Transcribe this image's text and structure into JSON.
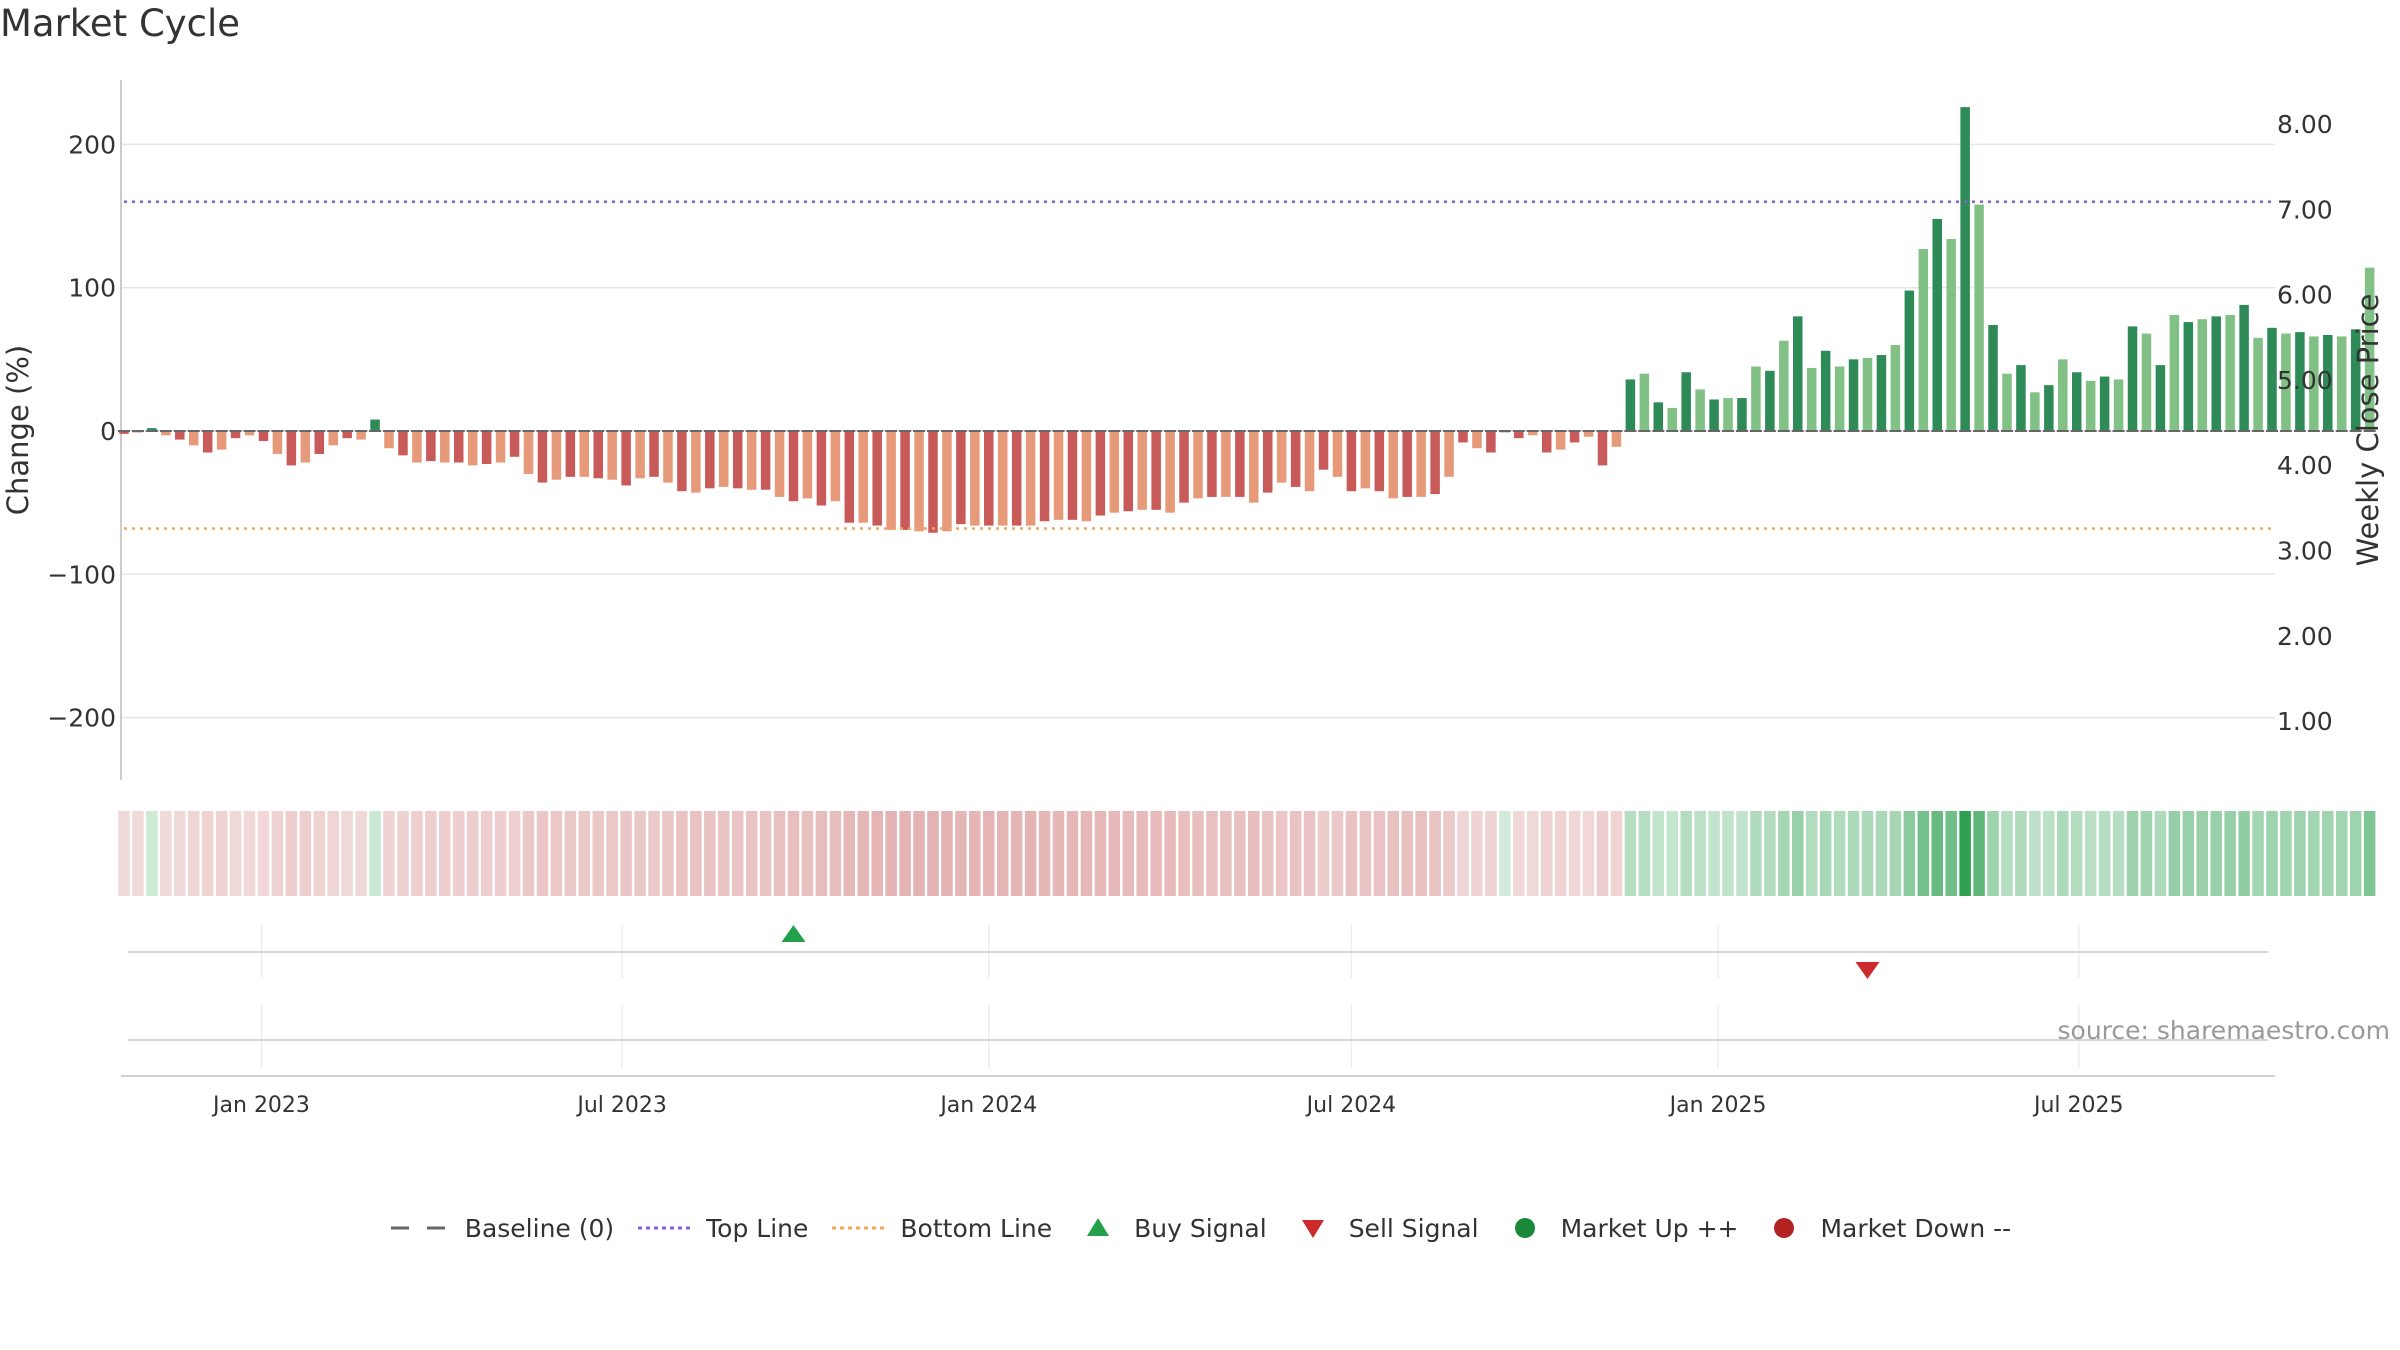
{
  "title": "Market Cycle",
  "source": "source: sharemaestro.com",
  "colors": {
    "up_strong": "#2e8b57",
    "up_light": "#82c185",
    "down_strong": "#c95a5a",
    "down_light": "#e69a7a",
    "top_line": "#8a5fd6",
    "bottom_line": "#f0a560",
    "baseline": "#666666",
    "buy": "#22a04b",
    "sell": "#cc2b2b",
    "market_up": "#1a8a3a",
    "market_down": "#b22222"
  },
  "legend": [
    {
      "label": "Baseline (0)",
      "icon": "dash-line"
    },
    {
      "label": "Top Line",
      "icon": "dotted-purple-line"
    },
    {
      "label": "Bottom Line",
      "icon": "dotted-orange-line"
    },
    {
      "label": "Buy Signal",
      "icon": "triangle-up"
    },
    {
      "label": "Sell Signal",
      "icon": "triangle-down"
    },
    {
      "label": "Market Up ++",
      "icon": "green-dot"
    },
    {
      "label": "Market Down --",
      "icon": "red-dot"
    }
  ],
  "chart_data": {
    "type": "bar",
    "ylabel_left": "Change (%)",
    "ylabel_right": "Weekly Close Price",
    "ylim_left": [
      -245,
      245
    ],
    "yticks_left": [
      200,
      100,
      0,
      -100,
      -200
    ],
    "yticks_left_labels": [
      "200",
      "100",
      "0",
      "−100",
      "−200"
    ],
    "yticks_right": [
      "8.00",
      "7.00",
      "6.00",
      "5.00",
      "4.00",
      "3.00",
      "2.00",
      "1.00"
    ],
    "top_line": 160,
    "bottom_line": -68,
    "baseline": 0,
    "xticks": [
      "Jan 2023",
      "Jul 2023",
      "Jan 2024",
      "Jul 2024",
      "Jan 2025",
      "Jul 2025"
    ],
    "x_range": [
      "2022-10-24",
      "2025-10-06"
    ],
    "first_week": "2022-10-24",
    "values": [
      -2,
      -1,
      2,
      -3,
      -6,
      -10,
      -15,
      -13,
      -5,
      -3,
      -7,
      -16,
      -24,
      -22,
      -16,
      -10,
      -5,
      -6,
      8,
      -12,
      -17,
      -22,
      -21,
      -22,
      -22,
      -24,
      -23,
      -22,
      -18,
      -30,
      -36,
      -34,
      -32,
      -32,
      -33,
      -34,
      -38,
      -33,
      -32,
      -36,
      -42,
      -43,
      -40,
      -39,
      -40,
      -41,
      -41,
      -46,
      -49,
      -47,
      -52,
      -49,
      -64,
      -64,
      -66,
      -69,
      -69,
      -70,
      -71,
      -70,
      -65,
      -66,
      -66,
      -66,
      -66,
      -66,
      -63,
      -62,
      -62,
      -63,
      -59,
      -57,
      -56,
      -55,
      -55,
      -57,
      -50,
      -47,
      -46,
      -46,
      -46,
      -50,
      -43,
      -36,
      -39,
      -42,
      -27,
      -32,
      -42,
      -40,
      -42,
      -47,
      -46,
      -46,
      -44,
      -32,
      -8,
      -12,
      -15,
      0,
      -5,
      -3,
      -15,
      -13,
      -8,
      -4,
      -24,
      -11,
      36,
      40,
      20,
      16,
      41,
      29,
      22,
      23,
      23,
      45,
      42,
      63,
      80,
      44,
      56,
      45,
      50,
      51,
      53,
      60,
      98,
      127,
      148,
      134,
      226,
      158,
      74,
      40,
      46,
      27,
      32,
      50,
      41,
      35,
      38,
      36,
      73,
      68,
      46,
      81,
      76,
      78,
      80,
      81,
      88,
      65,
      72,
      68,
      69,
      66,
      67,
      66,
      71,
      114
    ],
    "buy_signals": [
      "2023-09-25"
    ],
    "sell_signals": [
      "2025-03-17"
    ],
    "market_up": [],
    "market_down": []
  }
}
